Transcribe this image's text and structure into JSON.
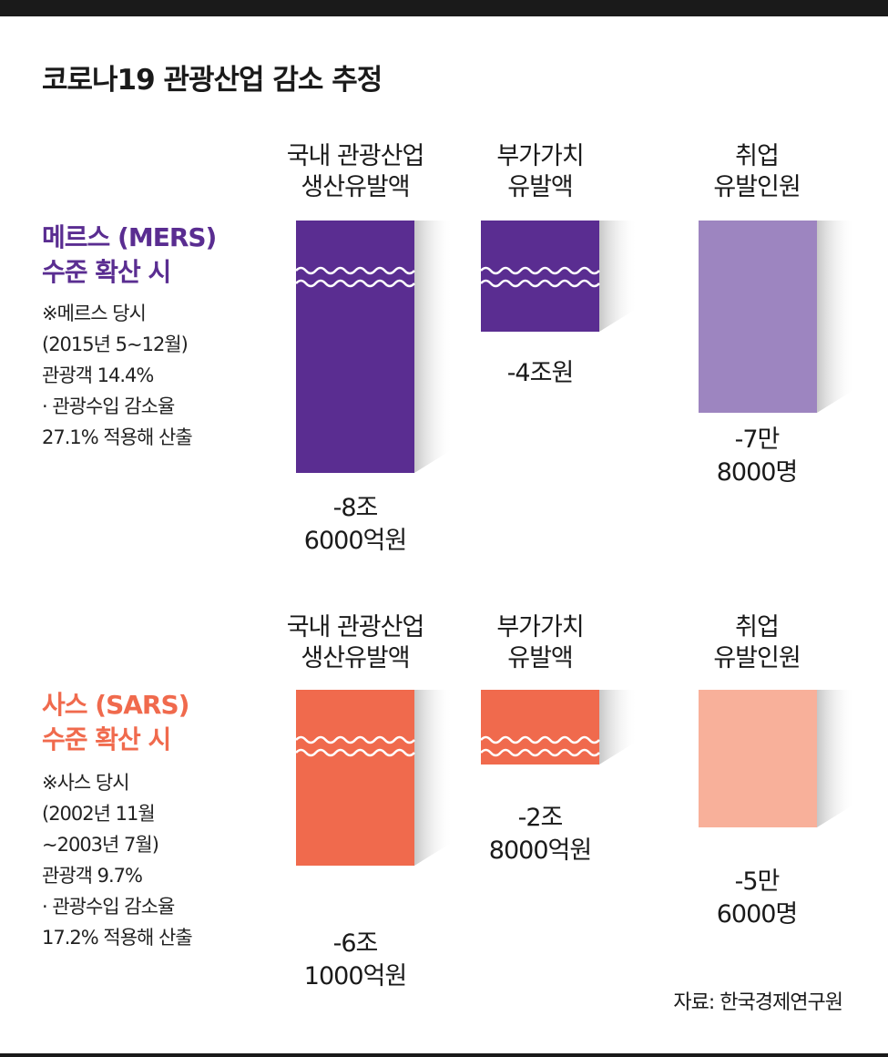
{
  "title": "코로나19 관광산업 감소 추정",
  "source": "자료: 한국경제연구원",
  "colors": {
    "mers_dark": "#5a2d91",
    "mers_light": "#9d85c0",
    "sars_dark": "#f06a4d",
    "sars_light": "#f8b09a",
    "mers_title": "#5a2d91",
    "sars_title": "#f06a4d"
  },
  "columns": [
    {
      "line1": "국내 관광산업",
      "line2": "생산유발액"
    },
    {
      "line1": "부가가치",
      "line2": "유발액"
    },
    {
      "line1": "취업",
      "line2": "유발인원"
    }
  ],
  "scenarios": [
    {
      "title_line1": "메르스 (MERS)",
      "title_line2": "수준 확산 시",
      "notes": [
        "※메르스 당시",
        "(2015년 5∼12월)",
        "관광객 14.4%",
        "· 관광수입 감소율",
        "27.1% 적용해 산출"
      ],
      "values": [
        {
          "line1": "-8조",
          "line2": "6000억원"
        },
        {
          "line1": "-4조원",
          "line2": ""
        },
        {
          "line1": "-7만",
          "line2": "8000명"
        }
      ]
    },
    {
      "title_line1": "사스 (SARS)",
      "title_line2": "수준 확산 시",
      "notes": [
        "※사스 당시",
        "(2002년 11월",
        "∼2003년 7월)",
        "관광객 9.7%",
        "· 관광수입 감소율",
        "17.2% 적용해 산출"
      ],
      "values": [
        {
          "line1": "-6조",
          "line2": "1000억원"
        },
        {
          "line1": "-2조",
          "line2": "8000억원"
        },
        {
          "line1": "-5만",
          "line2": "6000명"
        }
      ]
    }
  ],
  "chart_data": {
    "type": "bar",
    "categories": [
      "국내 관광산업 생산유발액",
      "부가가치 유발액",
      "취업 유발인원"
    ],
    "series": [
      {
        "name": "메르스 (MERS) 수준 확산 시",
        "values": [
          -86000,
          -40000,
          -78000
        ],
        "units": [
          "억원",
          "억원",
          "명"
        ]
      },
      {
        "name": "사스 (SARS) 수준 확산 시",
        "values": [
          -61000,
          -28000,
          -56000
        ],
        "units": [
          "억원",
          "억원",
          "명"
        ]
      }
    ],
    "axis_break": "wavy lines on 억원 bars",
    "grid": false,
    "legend": "none"
  }
}
